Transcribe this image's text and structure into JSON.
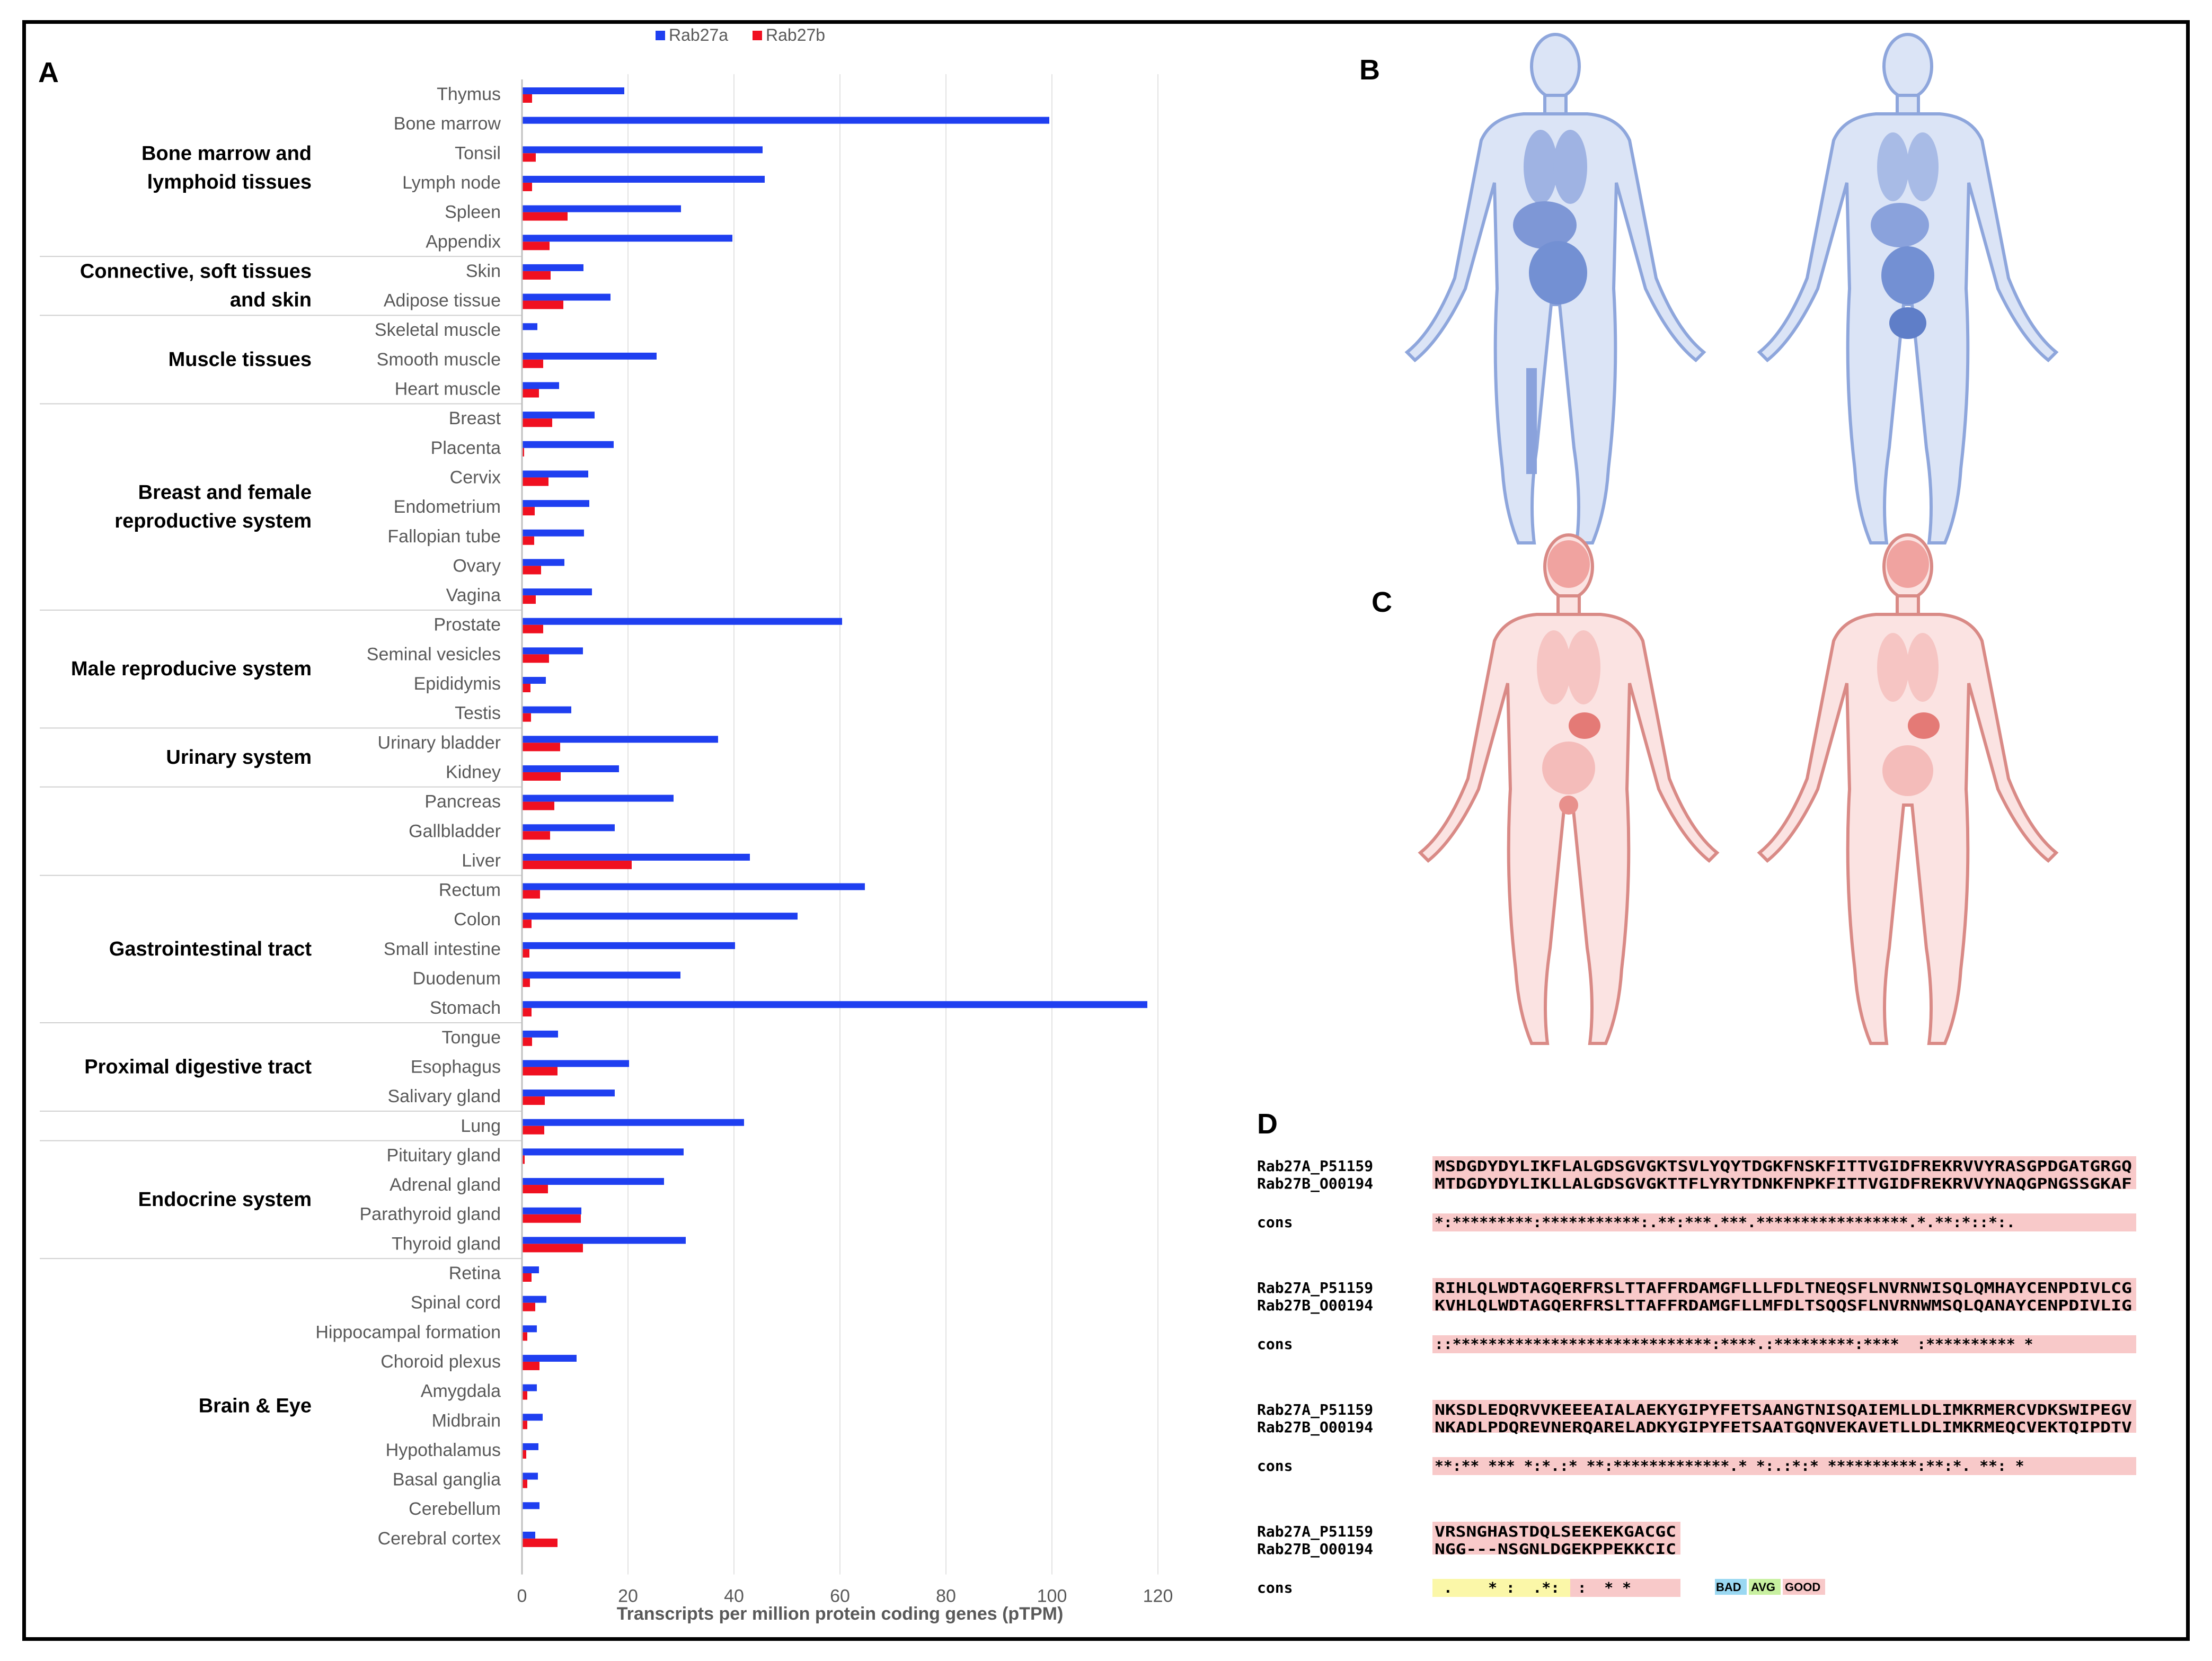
{
  "panels": {
    "a": "A",
    "b": "B",
    "c": "C",
    "d": "D"
  },
  "colors": {
    "rab27a": "#1f3ff0",
    "rab27b": "#f01020",
    "body_blue": "#6f8fd0",
    "body_red": "#e07a7a",
    "hl_red": "#f8c9c9",
    "hl_yellow": "#fbf7a8"
  },
  "chart_data": {
    "type": "bar",
    "orientation": "horizontal",
    "legend_position": "top",
    "xlabel": "Transcripts per million protein coding genes (pTPM)",
    "xlim": [
      0,
      120
    ],
    "xticks": [
      0,
      20,
      40,
      60,
      80,
      100,
      120
    ],
    "grid": true,
    "series_names": [
      "Rab27a",
      "Rab27b"
    ],
    "groups": [
      {
        "label": [
          "Bone marrow and",
          "lymphoid tissues"
        ],
        "tissues": [
          "Thymus",
          "Bone marrow",
          "Tonsil",
          "Lymph node",
          "Spleen",
          "Appendix"
        ]
      },
      {
        "label": [
          "Connective, soft tissues",
          "and skin"
        ],
        "tissues": [
          "Skin",
          "Adipose tissue"
        ]
      },
      {
        "label": [
          "Muscle tissues"
        ],
        "tissues": [
          "Skeletal muscle",
          "Smooth muscle",
          "Heart muscle"
        ]
      },
      {
        "label": [
          "Breast and female",
          "reproductive system"
        ],
        "tissues": [
          "Breast",
          "Placenta",
          "Cervix",
          "Endometrium",
          "Fallopian tube",
          "Ovary",
          "Vagina"
        ]
      },
      {
        "label": [
          "Male reproducive system"
        ],
        "tissues": [
          "Prostate",
          "Seminal vesicles",
          "Epididymis",
          "Testis"
        ]
      },
      {
        "label": [
          "Urinary system"
        ],
        "tissues": [
          "Urinary bladder",
          "Kidney"
        ]
      },
      {
        "label": [],
        "tissues": [
          "Pancreas",
          "Gallbladder",
          "Liver"
        ]
      },
      {
        "label": [
          "Gastrointestinal tract"
        ],
        "tissues": [
          "Rectum",
          "Colon",
          "Small intestine",
          "Duodenum",
          "Stomach"
        ]
      },
      {
        "label": [
          "Proximal digestive tract"
        ],
        "tissues": [
          "Tongue",
          "Esophagus",
          "Salivary gland"
        ]
      },
      {
        "label": [],
        "tissues": [
          "Lung"
        ]
      },
      {
        "label": [
          "Endocrine system"
        ],
        "tissues": [
          "Pituitary gland",
          "Adrenal gland",
          "Parathyroid gland",
          "Thyroid gland"
        ]
      },
      {
        "label": [
          "Brain & Eye"
        ],
        "tissues": [
          "Retina",
          "Spinal cord",
          "Hippocampal formation",
          "Choroid plexus",
          "Amygdala",
          "Midbrain",
          "Hypothalamus",
          "Basal ganglia",
          "Cerebellum",
          "Cerebral cortex"
        ]
      }
    ],
    "rab27a": [
      19.3,
      99.5,
      45.4,
      45.8,
      30.0,
      39.7,
      11.6,
      16.7,
      2.9,
      25.4,
      7.0,
      13.7,
      17.3,
      12.5,
      12.7,
      11.7,
      8.0,
      13.2,
      60.4,
      11.5,
      4.5,
      9.3,
      37.0,
      18.3,
      28.6,
      17.5,
      43.0,
      64.7,
      52.0,
      40.2,
      29.9,
      118.0,
      6.8,
      20.2,
      17.5,
      41.9,
      30.5,
      26.8,
      11.2,
      30.9,
      3.2,
      4.6,
      2.8,
      10.3,
      2.8,
      3.9,
      3.1,
      3.0,
      3.3,
      2.5
    ],
    "rab27b": [
      1.9,
      0.0,
      2.6,
      1.9,
      8.6,
      5.2,
      5.4,
      7.8,
      0.0,
      4.0,
      3.2,
      5.7,
      0.4,
      5.0,
      2.4,
      2.3,
      3.6,
      2.6,
      4.0,
      5.1,
      1.6,
      1.7,
      7.2,
      7.3,
      6.1,
      5.3,
      20.7,
      3.4,
      1.8,
      1.4,
      1.5,
      1.8,
      1.9,
      6.7,
      4.3,
      4.2,
      0.5,
      4.9,
      11.1,
      11.5,
      1.8,
      2.5,
      1.0,
      3.3,
      1.0,
      1.0,
      0.8,
      1.0,
      0.0,
      6.7
    ]
  },
  "alignment": {
    "blocks": [
      {
        "names": [
          "Rab27A_P51159",
          "Rab27B_O00194"
        ],
        "seq": [
          "MSDGDYDYLIKFLALGDSGVGKTSVLYQYTDGKFNSKFITTVGIDFREKRVVYRASGPDGATGRGQ",
          "MTDGDYDYLIKLLALGDSGVGKTTFLYRYTDNKFNPKFITTVGIDFREKRVVYNAQGPNGSSGKAF"
        ],
        "cons_label": "cons",
        "cons": "*:*********:***********:.**:***.***.*****************.*.**:*::*:."
      },
      {
        "names": [
          "Rab27A_P51159",
          "Rab27B_O00194"
        ],
        "seq": [
          "RIHLQLWDTAGQERFRSLTTAFFRDAMGFLLLFDLTNEQSFLNVRNWISQLQMHAYCENPDIVLCG",
          "KVHLQLWDTAGQERFRSLTTAFFRDAMGFLLMFDLTSQQSFLNVRNWMSQLQANAYCENPDIVLIG"
        ],
        "cons_label": "cons",
        "cons": "::*****************************:****.:*********:****  :********** *"
      },
      {
        "names": [
          "Rab27A_P51159",
          "Rab27B_O00194"
        ],
        "seq": [
          "NKSDLEDQRVVKEEEAIALAEKYGIPYFETSAANGTNISQAIEMLLDLIMKRMERCVDKSWIPEGV",
          "NKADLPDQREVNERQARELADKYGIPYFETSAATGQNVEKAVETLLDLIMKRMEQCVEKTQIPDTV"
        ],
        "cons_label": "cons",
        "cons": "**:** *** *:*.:* **:*************.* *:.:*:* **********:**:*. **: *"
      },
      {
        "names": [
          "Rab27A_P51159",
          "Rab27B_O00194"
        ],
        "seq": [
          "VRSNGHASTDQLSEEKEKGACGC",
          "NGG---NSGNLDGEKPPEKKCIC"
        ],
        "cons_label": "cons",
        "cons": " .    * :  .*:  :  * *"
      }
    ],
    "legend": {
      "bad": "BAD",
      "avg": "AVG",
      "good": "GOOD"
    }
  }
}
